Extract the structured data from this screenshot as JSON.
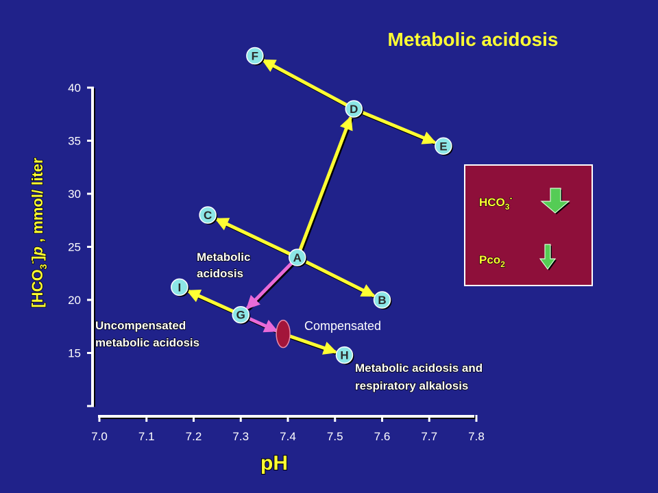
{
  "title": "Metabolic acidosis",
  "colors": {
    "background": "#20228a",
    "axis": "#ffffff",
    "title": "#ffff33",
    "arrow_yellow": "#ffff33",
    "arrow_pink": "#e96bd8",
    "node_fill": "#8ce6e6",
    "node_text": "#2b2b2b",
    "ellipse": "#a3153a",
    "legend_bg": "#8e0f3a",
    "legend_arrow": "#55cc55"
  },
  "axes": {
    "x_label": "pH",
    "y_label_parts": [
      "[HCO",
      "3",
      "-",
      "]",
      "p",
      " , mmol/ liter"
    ],
    "x_ticks": [
      "7.0",
      "7.1",
      "7.2",
      "7.3",
      "7.4",
      "7.5",
      "7.6",
      "7.7",
      "7.8"
    ],
    "y_ticks": [
      "40",
      "35",
      "30",
      "25",
      "20",
      "15"
    ],
    "x_range": [
      7.0,
      7.8
    ],
    "y_range": [
      10,
      40
    ]
  },
  "points": [
    {
      "id": "A",
      "ph": 7.42,
      "hco3": 24
    },
    {
      "id": "B",
      "ph": 7.6,
      "hco3": 20
    },
    {
      "id": "C",
      "ph": 7.23,
      "hco3": 28
    },
    {
      "id": "D",
      "ph": 7.54,
      "hco3": 38
    },
    {
      "id": "E",
      "ph": 7.73,
      "hco3": 34.5
    },
    {
      "id": "F",
      "ph": 7.33,
      "hco3": 43
    },
    {
      "id": "G",
      "ph": 7.3,
      "hco3": 18.6
    },
    {
      "id": "H",
      "ph": 7.52,
      "hco3": 14.8
    },
    {
      "id": "I",
      "ph": 7.17,
      "hco3": 21.2
    }
  ],
  "arrows": [
    {
      "from": "A",
      "to": "D",
      "color": "arrow_yellow"
    },
    {
      "from": "A",
      "to": "C",
      "color": "arrow_yellow",
      "head_end": true
    },
    {
      "from": "A",
      "to": "B",
      "color": "arrow_yellow"
    },
    {
      "from": "D",
      "to": "F",
      "color": "arrow_yellow"
    },
    {
      "from": "D",
      "to": "E",
      "color": "arrow_yellow"
    },
    {
      "from": "A",
      "to": "G",
      "color": "arrow_pink"
    },
    {
      "from": "G",
      "to": "I",
      "color": "arrow_yellow"
    },
    {
      "from": "G",
      "to": "ellipse",
      "color": "arrow_pink"
    },
    {
      "from": "ellipse",
      "to": "H",
      "color": "arrow_yellow"
    }
  ],
  "ellipse": {
    "ph": 7.39,
    "hco3": 16.8
  },
  "labels": {
    "metabolic_acidosis": [
      "Metabolic",
      "acidosis"
    ],
    "uncompensated": [
      "Uncompensated",
      "metabolic acidosis"
    ],
    "compensated": "Compensated",
    "mixed": [
      "Metabolic acidosis and",
      "respiratory alkalosis"
    ]
  },
  "legend": {
    "hco3_label": "HCO",
    "hco3_sub": "3",
    "hco3_sup": "-",
    "pco2_label": "Pco",
    "pco2_sub": "2"
  }
}
